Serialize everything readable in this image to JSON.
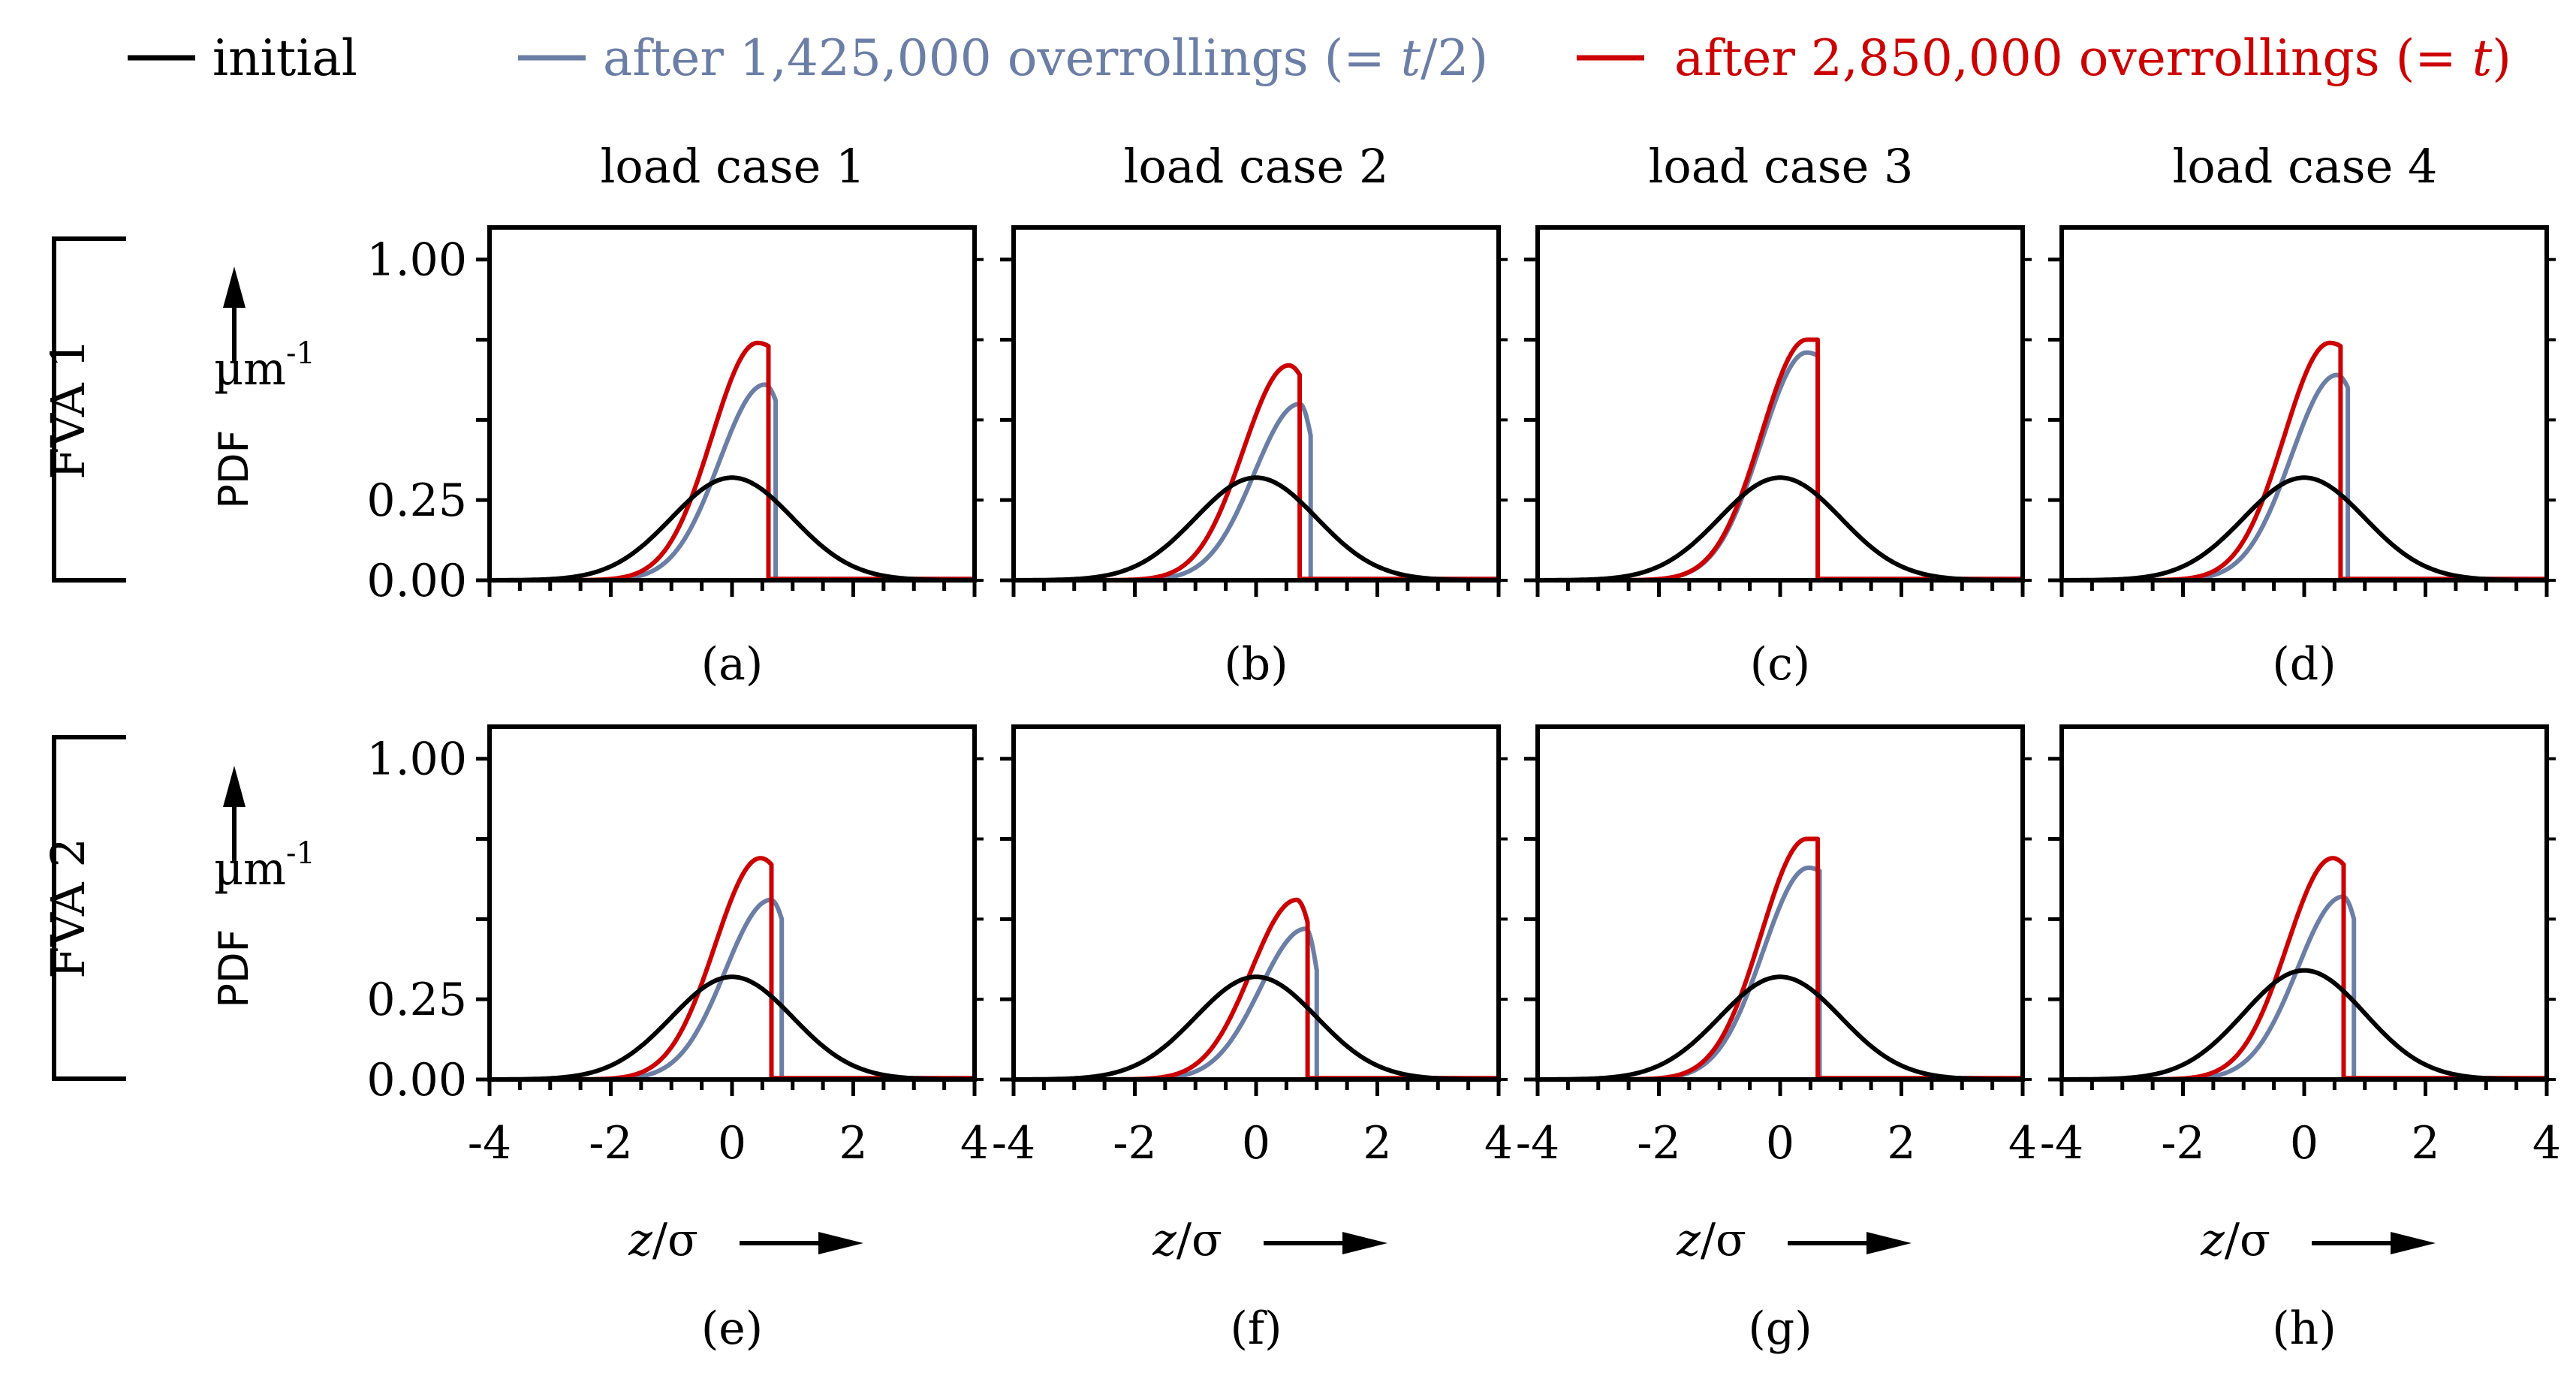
{
  "figure": {
    "legend": [
      {
        "name": "initial",
        "label": "initial",
        "color": "#000000"
      },
      {
        "name": "half",
        "label_main": "after 1,425,000 overrollings (= ",
        "label_var": "t",
        "label_end": "/2)",
        "color": "#6b7ea6"
      },
      {
        "name": "full",
        "label_main": "after 2,850,000 overrollings (= ",
        "label_var": "t",
        "label_end": ")",
        "color": "#cc0000"
      }
    ],
    "columns": [
      "load case 1",
      "load case 2",
      "load case 3",
      "load case 4"
    ],
    "rows": [
      {
        "label": "FVA 1",
        "ylabel": "PDF",
        "yunit": "µm",
        "yunit_exp": "-1"
      },
      {
        "label": "FVA 2",
        "ylabel": "PDF",
        "yunit": "µm",
        "yunit_exp": "-1"
      }
    ],
    "xlabel_var": "z",
    "xlabel_rest": "/σ",
    "panel_labels": [
      "(a)",
      "(b)",
      "(c)",
      "(d)",
      "(e)",
      "(f)",
      "(g)",
      "(h)"
    ]
  },
  "chart_data": {
    "type": "line",
    "xlim": [
      -4,
      4
    ],
    "ylim": [
      0,
      1.1
    ],
    "xticks": [
      -4,
      -2,
      0,
      2,
      4
    ],
    "xtick_labels": [
      "-4",
      "-2",
      "0",
      "2",
      "4"
    ],
    "yticks": [
      0,
      0.25,
      0.5,
      0.75,
      1.0
    ],
    "ytick_labels": [
      "0.00",
      "0.25",
      "",
      "",
      "1.00"
    ],
    "series_style": {
      "initial": {
        "color": "#000000"
      },
      "half": {
        "color": "#6b7ea6"
      },
      "full": {
        "color": "#cc0000"
      }
    },
    "panels": [
      {
        "label": "(a)",
        "initial_peak": 0.32,
        "half": {
          "cut": 0.72,
          "peak": 0.61,
          "cutval": 0.56
        },
        "full": {
          "cut": 0.6,
          "peak": 0.74,
          "cutval": 0.73
        }
      },
      {
        "label": "(b)",
        "initial_peak": 0.32,
        "half": {
          "cut": 0.9,
          "peak": 0.55,
          "cutval": 0.45
        },
        "full": {
          "cut": 0.72,
          "peak": 0.67,
          "cutval": 0.64
        }
      },
      {
        "label": "(c)",
        "initial_peak": 0.32,
        "half": {
          "cut": 0.62,
          "peak": 0.71,
          "cutval": 0.7
        },
        "full": {
          "cut": 0.62,
          "peak": 0.75,
          "cutval": 0.75
        }
      },
      {
        "label": "(d)",
        "initial_peak": 0.32,
        "half": {
          "cut": 0.72,
          "peak": 0.64,
          "cutval": 0.6
        },
        "full": {
          "cut": 0.6,
          "peak": 0.74,
          "cutval": 0.73
        }
      },
      {
        "label": "(e)",
        "initial_peak": 0.32,
        "half": {
          "cut": 0.82,
          "peak": 0.56,
          "cutval": 0.5
        },
        "full": {
          "cut": 0.65,
          "peak": 0.69,
          "cutval": 0.67
        }
      },
      {
        "label": "(f)",
        "initial_peak": 0.32,
        "half": {
          "cut": 1.0,
          "peak": 0.47,
          "cutval": 0.34
        },
        "full": {
          "cut": 0.85,
          "peak": 0.56,
          "cutval": 0.49
        }
      },
      {
        "label": "(g)",
        "initial_peak": 0.32,
        "half": {
          "cut": 0.65,
          "peak": 0.66,
          "cutval": 0.65
        },
        "full": {
          "cut": 0.62,
          "peak": 0.75,
          "cutval": 0.75
        }
      },
      {
        "label": "(h)",
        "initial_peak": 0.34,
        "half": {
          "cut": 0.82,
          "peak": 0.57,
          "cutval": 0.5
        },
        "full": {
          "cut": 0.65,
          "peak": 0.69,
          "cutval": 0.67
        }
      }
    ]
  }
}
